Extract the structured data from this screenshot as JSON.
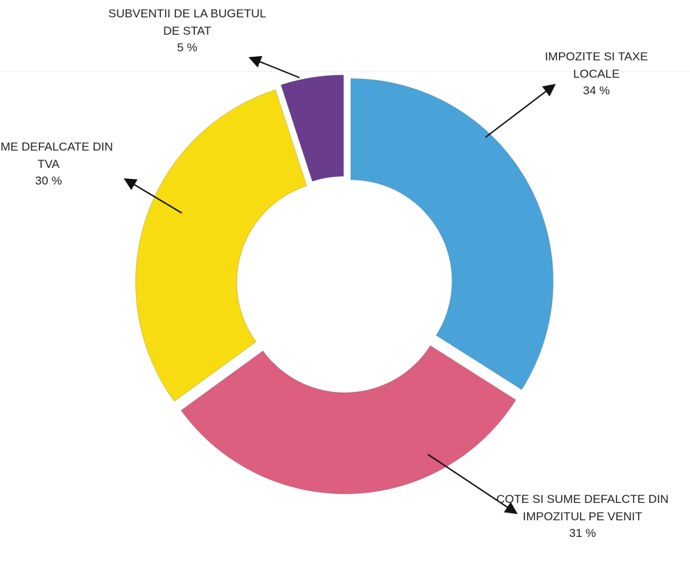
{
  "chart_data": {
    "type": "donut",
    "categories": [
      "IMPOZITE SI TAXE LOCALE",
      "COTE SI SUME DEFALCTE DIN IMPOZITUL PE VENIT",
      "SUME DEFALCATE DIN TVA",
      "SUBVENTII DE LA BUGETUL DE STAT"
    ],
    "values": [
      34,
      31,
      30,
      5
    ],
    "value_labels": [
      "34 %",
      "31 %",
      "30 %",
      "5 %"
    ],
    "colors": [
      "#4aa3d8",
      "#dc5f80",
      "#f7dc12",
      "#6a3d8c"
    ]
  }
}
